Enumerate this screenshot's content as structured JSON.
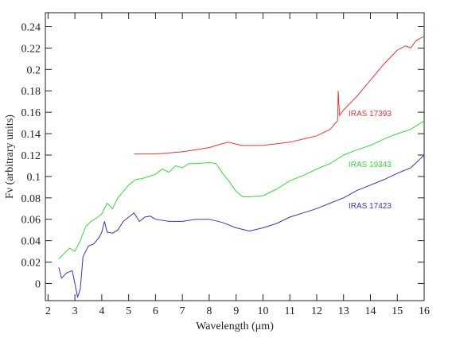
{
  "chart_data": {
    "type": "line",
    "x_label": "Wavelength (μm)",
    "y_label": "Fν (arbitrary units)",
    "xlim": [
      1.9,
      16
    ],
    "ylim": [
      -0.016,
      0.253
    ],
    "xticks": [
      2,
      3,
      4,
      5,
      6,
      7,
      8,
      9,
      10,
      11,
      12,
      13,
      14,
      15,
      16
    ],
    "yticks": [
      0,
      0.02,
      0.04,
      0.06,
      0.08,
      0.1,
      0.12,
      0.14,
      0.16,
      0.18,
      0.2,
      0.22,
      0.24
    ],
    "series": [
      {
        "name": "IRAS 17393",
        "color": "#ee3333",
        "x": [
          5.2,
          6,
          7,
          8,
          8.4,
          8.7,
          9.2,
          10,
          11,
          12,
          12.5,
          12.7,
          12.78,
          12.8,
          12.85,
          13,
          13.5,
          14,
          14.5,
          15,
          15.3,
          15.5,
          15.7,
          16
        ],
        "values": [
          0.121,
          0.121,
          0.123,
          0.127,
          0.13,
          0.132,
          0.129,
          0.129,
          0.132,
          0.138,
          0.144,
          0.15,
          0.152,
          0.18,
          0.157,
          0.162,
          0.175,
          0.19,
          0.205,
          0.218,
          0.222,
          0.22,
          0.227,
          0.231
        ]
      },
      {
        "name": "IRAS 19343",
        "color": "#33dd33",
        "x": [
          2.4,
          2.6,
          2.8,
          3.0,
          3.2,
          3.4,
          3.6,
          3.8,
          4.0,
          4.2,
          4.4,
          4.6,
          4.8,
          5.0,
          5.25,
          5.5,
          5.75,
          6,
          6.25,
          6.5,
          6.75,
          7,
          7.25,
          7.5,
          8,
          8.25,
          8.5,
          8.75,
          9,
          9.25,
          9.5,
          10,
          10.5,
          11,
          11.5,
          12,
          12.5,
          13,
          13.5,
          14,
          14.5,
          15,
          15.5,
          16
        ],
        "values": [
          0.023,
          0.028,
          0.033,
          0.03,
          0.04,
          0.053,
          0.058,
          0.061,
          0.065,
          0.075,
          0.07,
          0.08,
          0.086,
          0.092,
          0.097,
          0.098,
          0.1,
          0.102,
          0.107,
          0.104,
          0.11,
          0.108,
          0.112,
          0.112,
          0.113,
          0.112,
          0.103,
          0.095,
          0.086,
          0.081,
          0.081,
          0.082,
          0.088,
          0.096,
          0.101,
          0.107,
          0.112,
          0.12,
          0.125,
          0.129,
          0.135,
          0.14,
          0.144,
          0.152
        ]
      },
      {
        "name": "IRAS 17423",
        "color": "#3333cc",
        "x": [
          2.4,
          2.5,
          2.7,
          2.9,
          3.0,
          3.1,
          3.2,
          3.3,
          3.5,
          3.7,
          3.9,
          4.0,
          4.1,
          4.2,
          4.4,
          4.6,
          4.8,
          5.0,
          5.2,
          5.4,
          5.6,
          5.8,
          6,
          6.5,
          7,
          7.5,
          8,
          8.5,
          9,
          9.5,
          10,
          10.5,
          11,
          11.5,
          12,
          12.5,
          13,
          13.5,
          14,
          14.5,
          15,
          15.5,
          16
        ],
        "values": [
          0.015,
          0.005,
          0.01,
          0.012,
          0.0,
          -0.013,
          -0.005,
          0.025,
          0.035,
          0.037,
          0.043,
          0.048,
          0.058,
          0.048,
          0.047,
          0.05,
          0.058,
          0.062,
          0.066,
          0.058,
          0.062,
          0.063,
          0.06,
          0.058,
          0.058,
          0.06,
          0.06,
          0.057,
          0.052,
          0.049,
          0.052,
          0.056,
          0.062,
          0.066,
          0.07,
          0.075,
          0.08,
          0.087,
          0.092,
          0.097,
          0.103,
          0.108,
          0.12
        ]
      }
    ]
  }
}
